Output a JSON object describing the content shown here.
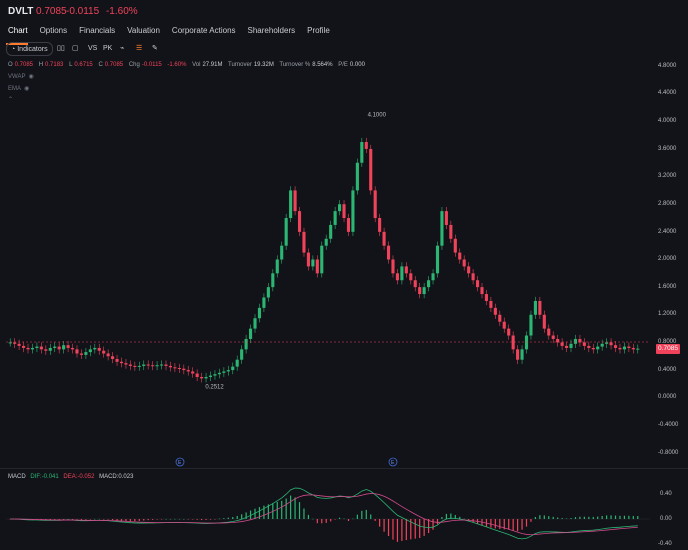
{
  "header": {
    "ticker": "DVLT",
    "price": "0.7085",
    "change": "-0.0115",
    "change_pct": "-1.60%"
  },
  "tabs": [
    "Chart",
    "Options",
    "Financials",
    "Valuation",
    "Corporate Actions",
    "Shareholders",
    "Profile"
  ],
  "toolbar": {
    "indicators": "Indicators",
    "vs": "VS",
    "pk": "PK"
  },
  "ohlc": {
    "o_label": "O",
    "o": "0.7085",
    "h_label": "H",
    "h": "0.7183",
    "l_label": "L",
    "l": "0.6715",
    "c_label": "C",
    "c": "0.7085",
    "chg_label": "Chg",
    "chg": "-0.0115",
    "chg_pct": "-1.60%",
    "vol_label": "Vol",
    "vol": "27.91M",
    "turnover_label": "Turnover",
    "turnover": "19.32M",
    "turnover_pct_label": "Turnover %",
    "turnover_pct": "8.564%",
    "pe_label": "P/E",
    "pe": "0.000"
  },
  "overlays": [
    "VWAP",
    "EMA"
  ],
  "price_axis": [
    "4.8000",
    "4.4000",
    "4.0000",
    "3.6000",
    "3.2000",
    "2.8000",
    "2.4000",
    "2.0000",
    "1.6000",
    "1.2000",
    "0.8000",
    "0.4000",
    "0.0000",
    "-0.4000",
    "-0.8000"
  ],
  "last_price_tag": "0.7085",
  "annotations": {
    "high": "4.1000",
    "low": "0.2512",
    "marker_e": "E"
  },
  "macd": {
    "title": "MACD",
    "dif_label": "DIF:",
    "dif": "-0.041",
    "dea_label": "DEA:",
    "dea": "-0.052",
    "macd_label": "MACD:",
    "macd": "0.023",
    "axis": [
      "0.40",
      "0.00",
      "-0.40"
    ]
  },
  "colors": {
    "up": "#2bb673",
    "down": "#f0435b",
    "accent": "#ff7b2e",
    "bg": "#121318"
  },
  "chart_data": {
    "type": "candlestick",
    "series": [
      {
        "name": "DVLT",
        "values": [
          0.8,
          0.78,
          0.75,
          0.72,
          0.7,
          0.72,
          0.74,
          0.7,
          0.68,
          0.72,
          0.74,
          0.7,
          0.76,
          0.72,
          0.7,
          0.64,
          0.62,
          0.66,
          0.7,
          0.72,
          0.68,
          0.64,
          0.6,
          0.56,
          0.52,
          0.5,
          0.48,
          0.46,
          0.45,
          0.46,
          0.48,
          0.47,
          0.46,
          0.47,
          0.48,
          0.46,
          0.44,
          0.43,
          0.42,
          0.4,
          0.38,
          0.35,
          0.3,
          0.28,
          0.3,
          0.32,
          0.34,
          0.36,
          0.38,
          0.4,
          0.45,
          0.55,
          0.7,
          0.85,
          1.0,
          1.15,
          1.3,
          1.45,
          1.6,
          1.8,
          2.0,
          2.2,
          2.6,
          3.0,
          2.7,
          2.4,
          2.1,
          1.9,
          2.0,
          1.8,
          2.2,
          2.3,
          2.5,
          2.7,
          2.8,
          2.6,
          2.4,
          3.0,
          3.4,
          3.7,
          3.6,
          3.0,
          2.6,
          2.4,
          2.2,
          2.0,
          1.8,
          1.7,
          1.9,
          1.8,
          1.7,
          1.6,
          1.5,
          1.6,
          1.7,
          1.8,
          2.2,
          2.7,
          2.5,
          2.3,
          2.1,
          2.0,
          1.9,
          1.8,
          1.7,
          1.6,
          1.5,
          1.4,
          1.3,
          1.2,
          1.1,
          1.0,
          0.9,
          0.7,
          0.55,
          0.7,
          0.9,
          1.2,
          1.4,
          1.2,
          1.0,
          0.9,
          0.85,
          0.8,
          0.75,
          0.72,
          0.78,
          0.85,
          0.8,
          0.75,
          0.72,
          0.7,
          0.74,
          0.78,
          0.8,
          0.76,
          0.72,
          0.7,
          0.74,
          0.72,
          0.7,
          0.71
        ]
      }
    ],
    "ylim": [
      -0.8,
      4.8
    ],
    "high_label": "4.1000",
    "low_label": "0.2512",
    "last": 0.7085
  }
}
